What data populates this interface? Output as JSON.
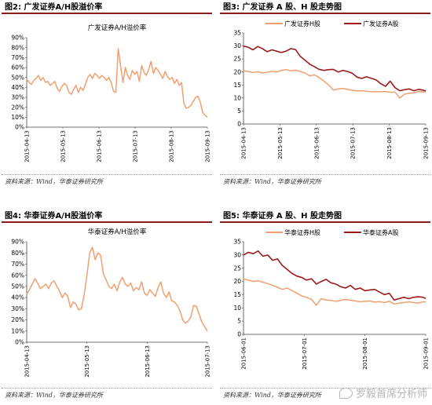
{
  "panels": [
    {
      "title": "图2:  广发证券A/H股溢价率",
      "source": "资料来源：Wind，华泰证券研究所"
    },
    {
      "title": "图3:  广发证券 A 股、H 股走势图",
      "source": "资料来源：Wind，华泰证券研究所"
    },
    {
      "title": "图4:  华泰证券A/H股溢价率",
      "source": "资料来源：Wind，华泰证券研究所"
    },
    {
      "title": "图5:  华泰证券 A 股、H 股走势图",
      "source": "资料来源：Wind，华泰证券研究所"
    }
  ],
  "watermark": "罗毅首席分析师",
  "colors": {
    "orange": "#f0a070",
    "darkred": "#9b1b1b",
    "title_rule": "#8b1a1a"
  },
  "chart_data": [
    {
      "id": "c1",
      "type": "line",
      "title": "广发证券A/H溢价率",
      "ylim": [
        0,
        0.9
      ],
      "yticks": [
        "0%",
        "10%",
        "20%",
        "30%",
        "40%",
        "50%",
        "60%",
        "70%",
        "80%",
        "90%"
      ],
      "xticks": [
        "2015-04-13",
        "2015-05-13",
        "2015-06-13",
        "2015-07-13",
        "2015-08-13",
        "2015-09-13"
      ],
      "legend": "none",
      "series": [
        {
          "color": "#f0a070",
          "x": [
            0,
            2,
            4,
            6,
            8,
            10,
            12,
            14,
            16,
            18,
            20,
            22,
            24,
            26,
            28,
            30,
            32,
            34,
            36,
            38,
            40,
            42,
            44,
            46,
            48,
            50,
            52,
            54,
            56,
            58,
            60,
            62,
            64,
            66,
            68,
            70,
            72,
            74,
            76,
            78,
            80,
            82,
            84,
            86,
            88,
            90,
            92,
            94,
            96,
            98,
            100,
            102,
            104,
            106,
            108,
            110,
            112,
            114,
            116,
            118,
            120,
            122,
            124,
            126,
            128,
            130,
            132,
            134,
            136,
            138,
            140,
            142,
            144,
            146,
            148,
            150,
            152,
            154
          ],
          "values": [
            0.48,
            0.45,
            0.43,
            0.47,
            0.49,
            0.52,
            0.47,
            0.5,
            0.45,
            0.46,
            0.42,
            0.44,
            0.46,
            0.39,
            0.36,
            0.41,
            0.44,
            0.42,
            0.35,
            0.33,
            0.38,
            0.42,
            0.35,
            0.4,
            0.37,
            0.43,
            0.5,
            0.53,
            0.49,
            0.54,
            0.52,
            0.49,
            0.52,
            0.5,
            0.47,
            0.5,
            0.45,
            0.36,
            0.35,
            0.79,
            0.62,
            0.45,
            0.6,
            0.52,
            0.48,
            0.57,
            0.53,
            0.56,
            0.46,
            0.62,
            0.55,
            0.52,
            0.58,
            0.66,
            0.54,
            0.6,
            0.57,
            0.53,
            0.49,
            0.56,
            0.51,
            0.48,
            0.5,
            0.44,
            0.48,
            0.42,
            0.45,
            0.24,
            0.19,
            0.2,
            0.22,
            0.26,
            0.3,
            0.31,
            0.25,
            0.15,
            0.12,
            0.1
          ]
        }
      ]
    },
    {
      "id": "c2",
      "type": "line",
      "title": "",
      "ylim": [
        0,
        35
      ],
      "yticks": [
        "0",
        "5",
        "10",
        "15",
        "20",
        "25",
        "30",
        "35"
      ],
      "xticks": [
        "2015-04-13",
        "2015-05-13",
        "2015-06-13",
        "2015-07-13",
        "2015-08-13",
        "2015-09-13"
      ],
      "legend": "top",
      "series": [
        {
          "name": "广发证券H股",
          "color": "#f0a070",
          "x": [
            0,
            4,
            8,
            12,
            16,
            20,
            24,
            28,
            32,
            36,
            40,
            44,
            48,
            52,
            56,
            60,
            64,
            68,
            72,
            76,
            80,
            84,
            88,
            92,
            96,
            100,
            104,
            108,
            112,
            116,
            120,
            124,
            128,
            132,
            136,
            140,
            144,
            148,
            152,
            154
          ],
          "values": [
            20.5,
            20.2,
            19.8,
            20.1,
            19.6,
            19.9,
            20.3,
            20.0,
            20.6,
            20.9,
            20.4,
            20.7,
            20.2,
            19.6,
            18.5,
            18.9,
            17.8,
            16.5,
            15.0,
            13.0,
            13.5,
            13.7,
            13.3,
            13.0,
            12.7,
            12.8,
            12.6,
            12.4,
            12.4,
            12.4,
            12.5,
            12.2,
            12.3,
            10.0,
            11.5,
            11.8,
            12.0,
            12.5,
            12.3,
            12.4
          ]
        },
        {
          "name": "广发证券A股",
          "color": "#9b1b1b",
          "x": [
            0,
            4,
            8,
            12,
            16,
            20,
            24,
            28,
            32,
            36,
            40,
            44,
            48,
            52,
            56,
            60,
            64,
            68,
            72,
            76,
            80,
            84,
            88,
            92,
            96,
            100,
            104,
            108,
            112,
            116,
            120,
            124,
            128,
            132,
            136,
            140,
            144,
            148,
            152,
            154
          ],
          "values": [
            30.0,
            29.5,
            28.5,
            29.8,
            29.0,
            27.8,
            28.5,
            28.0,
            27.5,
            28.0,
            29.0,
            28.6,
            26.0,
            24.5,
            23.0,
            22.0,
            21.0,
            20.6,
            20.9,
            21.0,
            20.0,
            20.6,
            20.2,
            19.5,
            18.0,
            17.5,
            18.2,
            17.6,
            17.0,
            15.5,
            14.5,
            16.5,
            14.0,
            12.8,
            13.2,
            13.5,
            12.8,
            13.3,
            13.0,
            12.7
          ]
        }
      ]
    },
    {
      "id": "c3",
      "type": "line",
      "title": "华泰证券A/H溢价率",
      "ylim": [
        0,
        0.9
      ],
      "yticks": [
        "0%",
        "10%",
        "20%",
        "30%",
        "40%",
        "50%",
        "60%",
        "70%",
        "80%",
        "90%"
      ],
      "xticks": [
        "2015-04-13",
        "2015-05-13",
        "2015-06-13",
        "2015-07-13"
      ],
      "legend": "none",
      "series": [
        {
          "color": "#f0a070",
          "x": [
            0,
            2,
            4,
            6,
            8,
            10,
            12,
            14,
            16,
            18,
            20,
            22,
            24,
            26,
            28,
            30,
            32,
            34,
            36,
            38,
            40,
            42,
            44,
            46,
            48,
            50,
            52,
            54,
            56,
            58,
            60,
            62,
            64,
            66,
            68,
            70,
            72,
            74,
            76,
            78,
            80,
            82,
            84,
            86,
            88,
            90,
            92,
            94,
            96,
            98,
            100,
            102,
            104,
            106,
            108,
            110,
            112,
            114,
            116,
            118,
            120,
            122,
            124,
            126,
            128,
            130,
            132
          ],
          "values": [
            0.43,
            0.47,
            0.52,
            0.57,
            0.53,
            0.48,
            0.5,
            0.52,
            0.48,
            0.53,
            0.55,
            0.5,
            0.46,
            0.4,
            0.44,
            0.41,
            0.31,
            0.36,
            0.34,
            0.29,
            0.3,
            0.43,
            0.6,
            0.8,
            0.85,
            0.74,
            0.8,
            0.78,
            0.61,
            0.56,
            0.5,
            0.48,
            0.52,
            0.46,
            0.54,
            0.58,
            0.52,
            0.5,
            0.53,
            0.46,
            0.49,
            0.47,
            0.54,
            0.44,
            0.42,
            0.47,
            0.44,
            0.41,
            0.49,
            0.54,
            0.44,
            0.4,
            0.45,
            0.37,
            0.36,
            0.33,
            0.28,
            0.2,
            0.17,
            0.19,
            0.23,
            0.33,
            0.32,
            0.25,
            0.18,
            0.14,
            0.1
          ]
        }
      ]
    },
    {
      "id": "c4",
      "type": "line",
      "title": "",
      "ylim": [
        0,
        35
      ],
      "yticks": [
        "0",
        "5",
        "10",
        "15",
        "20",
        "25",
        "30",
        "35"
      ],
      "xticks": [
        "2015-06-01",
        "2015-07-01",
        "2015-08-01",
        "2015-09-01"
      ],
      "legend": "top",
      "series": [
        {
          "name": "华泰证券H股",
          "color": "#f0a070",
          "x": [
            0,
            4,
            8,
            12,
            16,
            20,
            24,
            28,
            32,
            36,
            40,
            44,
            48,
            52,
            56,
            60,
            64,
            68,
            72,
            76,
            80,
            84,
            88,
            92,
            96,
            100,
            104,
            108,
            112,
            116,
            120,
            124,
            128,
            132,
            136,
            140,
            144,
            148,
            150
          ],
          "values": [
            21.0,
            20.5,
            20.0,
            20.3,
            19.7,
            19.2,
            18.5,
            17.8,
            17.0,
            17.5,
            16.5,
            15.5,
            14.5,
            14.0,
            13.2,
            11.0,
            13.5,
            13.0,
            12.8,
            12.5,
            12.8,
            13.2,
            12.9,
            12.6,
            12.3,
            12.5,
            12.6,
            12.2,
            12.4,
            12.0,
            12.5,
            11.5,
            11.8,
            12.0,
            12.3,
            12.0,
            11.8,
            12.3,
            12.2
          ]
        },
        {
          "name": "华泰证券A股",
          "color": "#9b1b1b",
          "x": [
            0,
            4,
            8,
            12,
            16,
            20,
            24,
            28,
            32,
            36,
            40,
            44,
            48,
            52,
            56,
            60,
            64,
            68,
            72,
            76,
            80,
            84,
            88,
            92,
            96,
            100,
            104,
            108,
            112,
            116,
            120,
            124,
            128,
            132,
            136,
            140,
            144,
            148,
            150
          ],
          "values": [
            30.0,
            31.0,
            30.5,
            31.5,
            29.5,
            30.0,
            28.0,
            28.5,
            26.0,
            24.5,
            23.0,
            22.0,
            21.5,
            20.5,
            21.0,
            19.0,
            20.0,
            20.8,
            19.5,
            19.0,
            18.0,
            17.5,
            18.5,
            17.0,
            17.5,
            16.5,
            16.8,
            17.0,
            16.0,
            15.0,
            15.5,
            13.0,
            13.5,
            14.0,
            13.5,
            14.0,
            14.2,
            14.0,
            13.5
          ]
        }
      ]
    }
  ]
}
